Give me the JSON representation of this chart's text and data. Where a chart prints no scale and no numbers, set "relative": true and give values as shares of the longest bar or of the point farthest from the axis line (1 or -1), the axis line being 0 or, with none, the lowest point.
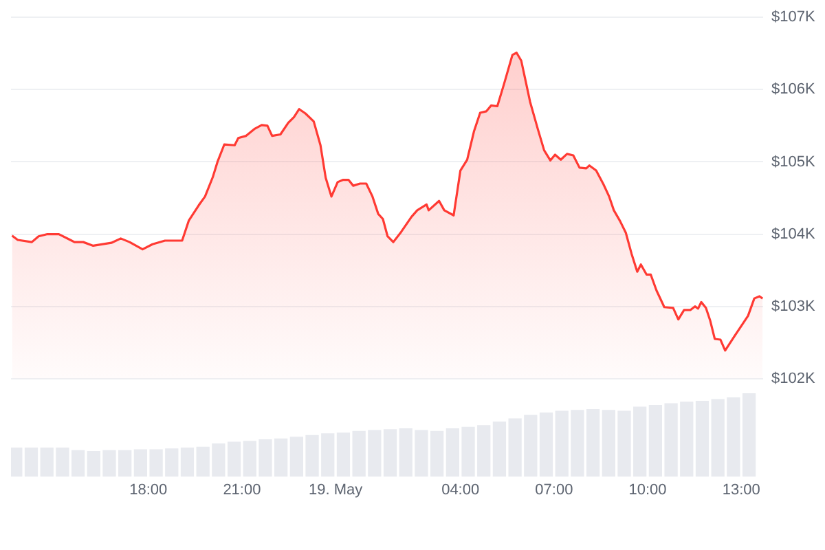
{
  "chart_data": [
    {
      "type": "area",
      "x": [
        "--05-18T13:38",
        "--05-18T13:49",
        "--05-18T14:16",
        "--05-18T14:29",
        "--05-18T14:46",
        "--05-18T15:08",
        "--05-18T15:30",
        "--05-18T15:38",
        "--05-18T15:55",
        "--05-18T16:14",
        "--05-18T16:49",
        "--05-18T17:07",
        "--05-18T17:24",
        "--05-18T17:49",
        "--05-18T18:08",
        "--05-18T18:32",
        "--05-18T19:05",
        "--05-18T19:18",
        "--05-18T19:37",
        "--05-18T19:49",
        "--05-18T20:04",
        "--05-18T20:13",
        "--05-18T20:26",
        "--05-18T20:46",
        "--05-18T20:53",
        "--05-18T21:08",
        "--05-18T21:25",
        "--05-18T21:38",
        "--05-18T21:49",
        "--05-18T21:58",
        "--05-18T22:14",
        "--05-18T22:29",
        "--05-18T22:40",
        "--05-18T22:50",
        "--05-18T23:02",
        "--05-18T23:18",
        "--05-18T23:31",
        "--05-18T23:41",
        "--05-18T23:52",
        "--05-19T00:04",
        "--05-19T00:14",
        "--05-19T00:25",
        "--05-19T00:34",
        "--05-19T00:47",
        "--05-19T00:59",
        "--05-19T01:11",
        "--05-19T01:22",
        "--05-19T01:31",
        "--05-19T01:40",
        "--05-19T01:51",
        "--05-19T02:06",
        "--05-19T02:26",
        "--05-19T02:37",
        "--05-19T02:55",
        "--05-19T02:59",
        "--05-19T03:19",
        "--05-19T03:29",
        "--05-19T03:47",
        "--05-19T04:00",
        "--05-19T04:13",
        "--05-19T04:26",
        "--05-19T04:38",
        "--05-19T04:50",
        "--05-19T04:59",
        "--05-19T05:11",
        "--05-19T05:24",
        "--05-19T05:40",
        "--05-19T05:48",
        "--05-19T05:57",
        "--05-19T06:14",
        "--05-19T06:29",
        "--05-19T06:41",
        "--05-19T06:53",
        "--05-19T07:02",
        "--05-19T07:13",
        "--05-19T07:25",
        "--05-19T07:37",
        "--05-19T07:49",
        "--05-19T08:02",
        "--05-19T08:08",
        "--05-19T08:21",
        "--05-19T08:35",
        "--05-19T08:46",
        "--05-19T08:55",
        "--05-19T09:07",
        "--05-19T09:18",
        "--05-19T09:29",
        "--05-19T09:40",
        "--05-19T09:47",
        "--05-19T09:58",
        "--05-19T10:06",
        "--05-19T10:17",
        "--05-19T10:32",
        "--05-19T10:49",
        "--05-19T10:59",
        "--05-19T11:10",
        "--05-19T11:22",
        "--05-19T11:31",
        "--05-19T11:37",
        "--05-19T11:43",
        "--05-19T11:52",
        "--05-19T12:00",
        "--05-19T12:09",
        "--05-19T12:20",
        "--05-19T12:29",
        "--05-19T12:47",
        "--05-19T13:00",
        "--05-19T13:13",
        "--05-19T13:25",
        "--05-19T13:35",
        "--05-19T13:41"
      ],
      "series": [
        {
          "color": "#ff3a33",
          "values": [
            103.98,
            103.92,
            103.89,
            103.97,
            104,
            104,
            103.92,
            103.89,
            103.89,
            103.84,
            103.88,
            103.94,
            103.89,
            103.79,
            103.86,
            103.91,
            103.91,
            104.19,
            104.4,
            104.52,
            104.79,
            105,
            105.24,
            105.23,
            105.33,
            105.36,
            105.46,
            105.51,
            105.5,
            105.36,
            105.38,
            105.54,
            105.62,
            105.73,
            105.67,
            105.56,
            105.23,
            104.78,
            104.52,
            104.72,
            104.75,
            104.75,
            104.67,
            104.7,
            104.7,
            104.52,
            104.28,
            104.21,
            103.97,
            103.89,
            104.03,
            104.24,
            104.33,
            104.41,
            104.33,
            104.46,
            104.33,
            104.26,
            104.88,
            105.03,
            105.42,
            105.68,
            105.7,
            105.78,
            105.77,
            106.08,
            106.48,
            106.51,
            106.4,
            105.83,
            105.45,
            105.16,
            105.02,
            105.1,
            105.03,
            105.11,
            105.09,
            104.92,
            104.91,
            104.95,
            104.88,
            104.69,
            104.52,
            104.33,
            104.18,
            104.02,
            103.73,
            103.48,
            103.58,
            103.44,
            103.44,
            103.22,
            102.99,
            102.98,
            102.82,
            102.95,
            102.95,
            103,
            102.97,
            103.06,
            102.98,
            102.81,
            102.55,
            102.54,
            102.39,
            102.59,
            102.73,
            102.87,
            103.11,
            103.14,
            103.11
          ]
        }
      ],
      "xlim": [
        "--05-18T13:36",
        "--05-19T13:42"
      ],
      "ylim": [
        102,
        107
      ],
      "yticks": [
        {
          "value": 102,
          "label": "$102K"
        },
        {
          "value": 103,
          "label": "$103K"
        },
        {
          "value": 104,
          "label": "$104K"
        },
        {
          "value": 105,
          "label": "$105K"
        },
        {
          "value": 106,
          "label": "$106K"
        },
        {
          "value": 107,
          "label": "$107K"
        }
      ],
      "grid": "y",
      "tick_labels": "y"
    },
    {
      "type": "bar",
      "x": [
        "--05-18T13:45",
        "--05-18T14:15",
        "--05-18T14:45",
        "--05-18T15:15",
        "--05-18T15:45",
        "--05-18T16:15",
        "--05-18T16:45",
        "--05-18T17:15",
        "--05-18T17:45",
        "--05-18T18:15",
        "--05-18T18:45",
        "--05-18T19:15",
        "--05-18T19:45",
        "--05-18T20:15",
        "--05-18T20:45",
        "--05-18T21:15",
        "--05-18T21:45",
        "--05-18T22:15",
        "--05-18T22:45",
        "--05-18T23:15",
        "--05-18T23:45",
        "--05-19T00:15",
        "--05-19T00:45",
        "--05-19T01:15",
        "--05-19T01:45",
        "--05-19T02:15",
        "--05-19T02:45",
        "--05-19T03:15",
        "--05-19T03:45",
        "--05-19T04:15",
        "--05-19T04:45",
        "--05-19T05:15",
        "--05-19T05:45",
        "--05-19T06:15",
        "--05-19T06:45",
        "--05-19T07:15",
        "--05-19T07:45",
        "--05-19T08:15",
        "--05-19T08:45",
        "--05-19T09:15",
        "--05-19T09:45",
        "--05-19T10:15",
        "--05-19T10:45",
        "--05-19T11:15",
        "--05-19T11:45",
        "--05-19T12:15",
        "--05-19T12:45",
        "--05-19T13:15"
      ],
      "values": [
        0.35,
        0.35,
        0.35,
        0.35,
        0.32,
        0.31,
        0.32,
        0.32,
        0.33,
        0.33,
        0.34,
        0.35,
        0.36,
        0.4,
        0.42,
        0.43,
        0.45,
        0.46,
        0.48,
        0.5,
        0.52,
        0.53,
        0.55,
        0.56,
        0.57,
        0.58,
        0.56,
        0.55,
        0.58,
        0.6,
        0.62,
        0.66,
        0.7,
        0.74,
        0.77,
        0.79,
        0.8,
        0.81,
        0.8,
        0.79,
        0.84,
        0.86,
        0.88,
        0.9,
        0.91,
        0.93,
        0.95,
        1
      ],
      "color": "#e8eaef",
      "relative": true,
      "xlim": [
        "--05-18T13:36",
        "--05-19T13:42"
      ],
      "xticks": [
        {
          "value": "--05-18T18:00",
          "label": "18:00"
        },
        {
          "value": "--05-18T21:00",
          "label": "21:00"
        },
        {
          "value": "--05-19T00:00",
          "label": "19. May"
        },
        {
          "value": "--05-19T04:00",
          "label": "04:00"
        },
        {
          "value": "--05-19T07:00",
          "label": "07:00"
        },
        {
          "value": "--05-19T10:00",
          "label": "10:00"
        },
        {
          "value": "--05-19T13:00",
          "label": "13:00"
        }
      ],
      "tick_labels": "x"
    }
  ]
}
